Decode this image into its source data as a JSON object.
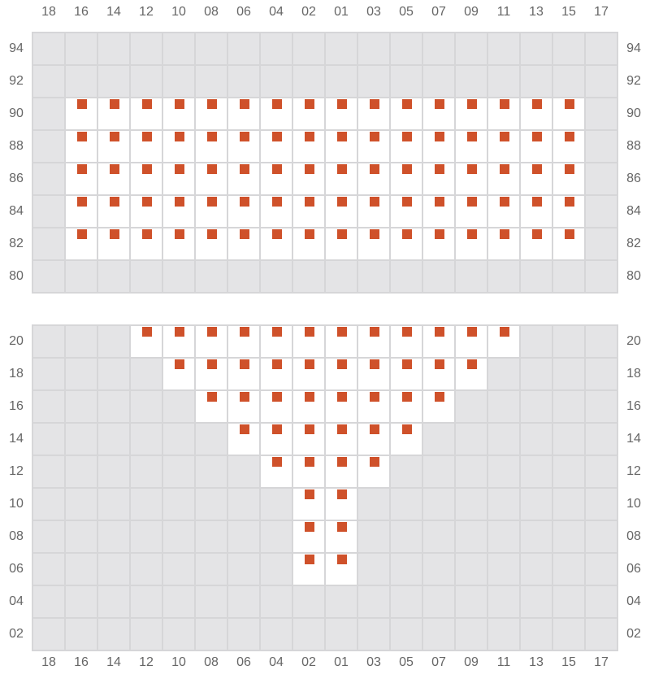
{
  "columns": [
    "18",
    "16",
    "14",
    "12",
    "10",
    "08",
    "06",
    "04",
    "02",
    "01",
    "03",
    "05",
    "07",
    "09",
    "11",
    "13",
    "15",
    "17"
  ],
  "marker_color": "#cf512a",
  "sections": [
    {
      "rows": [
        {
          "label": "94",
          "available": []
        },
        {
          "label": "92",
          "available": []
        },
        {
          "label": "90",
          "available": [
            "16",
            "14",
            "12",
            "10",
            "08",
            "06",
            "04",
            "02",
            "01",
            "03",
            "05",
            "07",
            "09",
            "11",
            "13",
            "15"
          ]
        },
        {
          "label": "88",
          "available": [
            "16",
            "14",
            "12",
            "10",
            "08",
            "06",
            "04",
            "02",
            "01",
            "03",
            "05",
            "07",
            "09",
            "11",
            "13",
            "15"
          ]
        },
        {
          "label": "86",
          "available": [
            "16",
            "14",
            "12",
            "10",
            "08",
            "06",
            "04",
            "02",
            "01",
            "03",
            "05",
            "07",
            "09",
            "11",
            "13",
            "15"
          ]
        },
        {
          "label": "84",
          "available": [
            "16",
            "14",
            "12",
            "10",
            "08",
            "06",
            "04",
            "02",
            "01",
            "03",
            "05",
            "07",
            "09",
            "11",
            "13",
            "15"
          ]
        },
        {
          "label": "82",
          "available": [
            "16",
            "14",
            "12",
            "10",
            "08",
            "06",
            "04",
            "02",
            "01",
            "03",
            "05",
            "07",
            "09",
            "11",
            "13",
            "15"
          ]
        },
        {
          "label": "80",
          "available": []
        }
      ]
    },
    {
      "rows": [
        {
          "label": "20",
          "available": [
            "12",
            "10",
            "08",
            "06",
            "04",
            "02",
            "01",
            "03",
            "05",
            "07",
            "09",
            "11"
          ]
        },
        {
          "label": "18",
          "available": [
            "10",
            "08",
            "06",
            "04",
            "02",
            "01",
            "03",
            "05",
            "07",
            "09"
          ]
        },
        {
          "label": "16",
          "available": [
            "08",
            "06",
            "04",
            "02",
            "01",
            "03",
            "05",
            "07"
          ]
        },
        {
          "label": "14",
          "available": [
            "06",
            "04",
            "02",
            "01",
            "03",
            "05"
          ]
        },
        {
          "label": "12",
          "available": [
            "04",
            "02",
            "01",
            "03"
          ]
        },
        {
          "label": "10",
          "available": [
            "02",
            "01"
          ]
        },
        {
          "label": "08",
          "available": [
            "02",
            "01"
          ]
        },
        {
          "label": "06",
          "available": [
            "02",
            "01"
          ]
        },
        {
          "label": "04",
          "available": []
        },
        {
          "label": "02",
          "available": []
        }
      ]
    }
  ]
}
